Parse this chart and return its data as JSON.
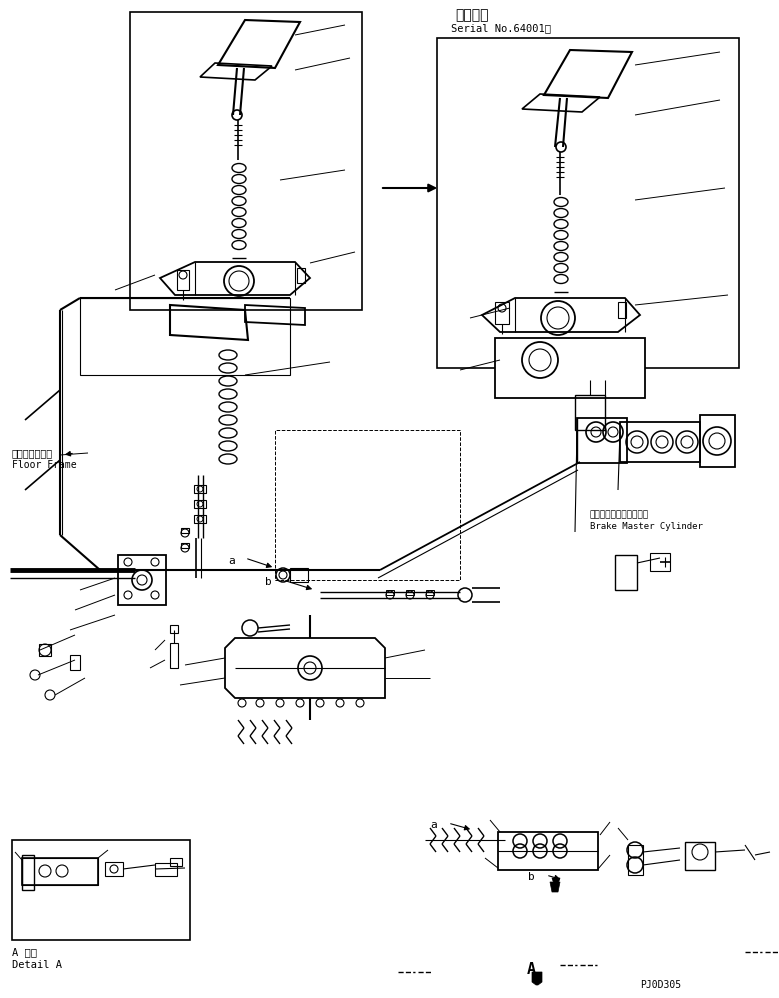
{
  "bg_color": "#ffffff",
  "lc": "#000000",
  "fig_width": 7.79,
  "fig_height": 9.98,
  "dpi": 100,
  "title_jp": "適用号機",
  "title_serial": "Serial No.64001～",
  "label_floor_frame_jp": "フロアフレーム",
  "label_floor_frame_en": "Floor Frame",
  "label_brake_jp": "ブレーキマスタシリンダ",
  "label_brake_en": "Brake Master Cylinder",
  "label_detail_jp": "A 詳細",
  "label_detail_en": "Detail A",
  "label_pj": "PJ0D305",
  "label_A": "A"
}
